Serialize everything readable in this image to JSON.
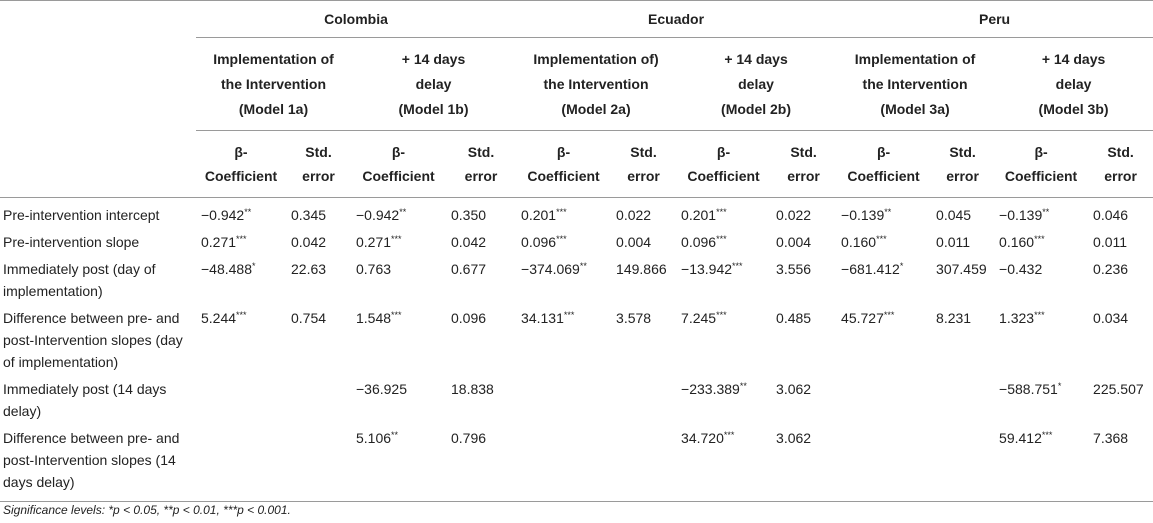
{
  "countries": [
    "Colombia",
    "Ecuador",
    "Peru"
  ],
  "models": [
    {
      "line1": "Implementation of",
      "line2": "the Intervention",
      "line3": "(Model 1a)"
    },
    {
      "line1": "+ 14 days",
      "line2": "delay",
      "line3": "(Model 1b)"
    },
    {
      "line1": "Implementation of)",
      "line2": "the Intervention",
      "line3": "(Model 2a)"
    },
    {
      "line1": "+ 14 days",
      "line2": "delay",
      "line3": "(Model 2b)"
    },
    {
      "line1": "Implementation of",
      "line2": "the Intervention",
      "line3": "(Model 3a)"
    },
    {
      "line1": "+ 14 days",
      "line2": "delay",
      "line3": "(Model 3b)"
    }
  ],
  "col_headers": {
    "coef_line1": "β-",
    "coef_line2": "Coefficient",
    "se_line1": "Std.",
    "se_line2": "error"
  },
  "rows": [
    {
      "label": "Pre-intervention intercept",
      "cells": [
        {
          "val": "−0.942",
          "sig": "**"
        },
        {
          "val": "0.345",
          "sig": ""
        },
        {
          "val": "−0.942",
          "sig": "**"
        },
        {
          "val": "0.350",
          "sig": ""
        },
        {
          "val": "0.201",
          "sig": "***"
        },
        {
          "val": "0.022",
          "sig": ""
        },
        {
          "val": "0.201",
          "sig": "***"
        },
        {
          "val": "0.022",
          "sig": ""
        },
        {
          "val": "−0.139",
          "sig": "**"
        },
        {
          "val": "0.045",
          "sig": ""
        },
        {
          "val": "−0.139",
          "sig": "**"
        },
        {
          "val": "0.046",
          "sig": ""
        }
      ]
    },
    {
      "label": "Pre-intervention slope",
      "cells": [
        {
          "val": "0.271",
          "sig": "***"
        },
        {
          "val": "0.042",
          "sig": ""
        },
        {
          "val": "0.271",
          "sig": "***"
        },
        {
          "val": "0.042",
          "sig": ""
        },
        {
          "val": "0.096",
          "sig": "***"
        },
        {
          "val": "0.004",
          "sig": ""
        },
        {
          "val": "0.096",
          "sig": "***"
        },
        {
          "val": "0.004",
          "sig": ""
        },
        {
          "val": "0.160",
          "sig": "***"
        },
        {
          "val": "0.011",
          "sig": ""
        },
        {
          "val": "0.160",
          "sig": "***"
        },
        {
          "val": "0.011",
          "sig": ""
        }
      ]
    },
    {
      "label": "Immediately post (day of implementation)",
      "cells": [
        {
          "val": "−48.488",
          "sig": "*"
        },
        {
          "val": "22.63",
          "sig": ""
        },
        {
          "val": "0.763",
          "sig": ""
        },
        {
          "val": "0.677",
          "sig": ""
        },
        {
          "val": "−374.069",
          "sig": "**"
        },
        {
          "val": "149.866",
          "sig": ""
        },
        {
          "val": "−13.942",
          "sig": "***"
        },
        {
          "val": "3.556",
          "sig": ""
        },
        {
          "val": "−681.412",
          "sig": "*"
        },
        {
          "val": "307.459",
          "sig": ""
        },
        {
          "val": "−0.432",
          "sig": ""
        },
        {
          "val": "0.236",
          "sig": ""
        }
      ]
    },
    {
      "label": "Difference between pre- and post-Intervention slopes (day of implementation)",
      "cells": [
        {
          "val": "5.244",
          "sig": "***"
        },
        {
          "val": "0.754",
          "sig": ""
        },
        {
          "val": "1.548",
          "sig": "***"
        },
        {
          "val": "0.096",
          "sig": ""
        },
        {
          "val": "34.131",
          "sig": "***"
        },
        {
          "val": "3.578",
          "sig": ""
        },
        {
          "val": "7.245",
          "sig": "***"
        },
        {
          "val": "0.485",
          "sig": ""
        },
        {
          "val": "45.727",
          "sig": "***"
        },
        {
          "val": "8.231",
          "sig": ""
        },
        {
          "val": "1.323",
          "sig": "***"
        },
        {
          "val": "0.034",
          "sig": ""
        }
      ]
    },
    {
      "label": "Immediately post (14 days delay)",
      "cells": [
        {
          "val": "",
          "sig": ""
        },
        {
          "val": "",
          "sig": ""
        },
        {
          "val": "−36.925",
          "sig": ""
        },
        {
          "val": "18.838",
          "sig": ""
        },
        {
          "val": "",
          "sig": ""
        },
        {
          "val": "",
          "sig": ""
        },
        {
          "val": "−233.389",
          "sig": "**"
        },
        {
          "val": "3.062",
          "sig": ""
        },
        {
          "val": "",
          "sig": ""
        },
        {
          "val": "",
          "sig": ""
        },
        {
          "val": "−588.751",
          "sig": "*"
        },
        {
          "val": "225.507",
          "sig": ""
        }
      ]
    },
    {
      "label": "Difference between pre- and post-Intervention slopes (14 days delay)",
      "cells": [
        {
          "val": "",
          "sig": ""
        },
        {
          "val": "",
          "sig": ""
        },
        {
          "val": "5.106",
          "sig": "**"
        },
        {
          "val": "0.796",
          "sig": ""
        },
        {
          "val": "",
          "sig": ""
        },
        {
          "val": "",
          "sig": ""
        },
        {
          "val": "34.720",
          "sig": "***"
        },
        {
          "val": "3.062",
          "sig": ""
        },
        {
          "val": "",
          "sig": ""
        },
        {
          "val": "",
          "sig": ""
        },
        {
          "val": "59.412",
          "sig": "***"
        },
        {
          "val": "7.368",
          "sig": ""
        }
      ]
    }
  ],
  "footnote": "Significance levels: *p < 0.05, **p < 0.01, ***p < 0.001."
}
